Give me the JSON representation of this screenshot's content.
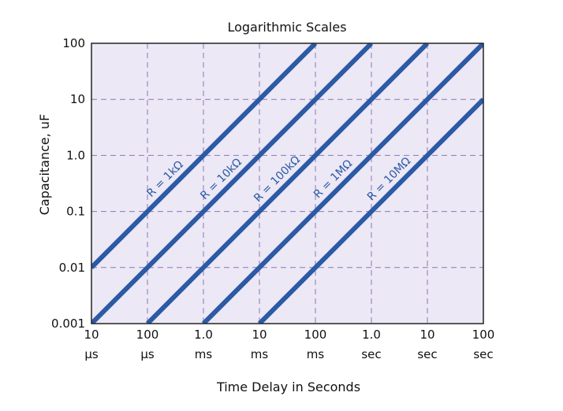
{
  "chart_data": {
    "type": "line",
    "title": "Logarithmic Scales",
    "xlabel": "Time Delay in Seconds",
    "ylabel": "Capacitance, uF",
    "x_scale": "log",
    "y_scale": "log",
    "xlim": [
      1e-05,
      100
    ],
    "ylim": [
      0.001,
      100
    ],
    "grid": true,
    "x_ticks": [
      {
        "value": 1e-05,
        "line1": "10",
        "line2": "µs"
      },
      {
        "value": 0.0001,
        "line1": "100",
        "line2": "µs"
      },
      {
        "value": 0.001,
        "line1": "1.0",
        "line2": "ms"
      },
      {
        "value": 0.01,
        "line1": "10",
        "line2": "ms"
      },
      {
        "value": 0.1,
        "line1": "100",
        "line2": "ms"
      },
      {
        "value": 1,
        "line1": "1.0",
        "line2": "sec"
      },
      {
        "value": 10,
        "line1": "10",
        "line2": "sec"
      },
      {
        "value": 100,
        "line1": "100",
        "line2": "sec"
      }
    ],
    "y_ticks": [
      {
        "value": 100,
        "label": "100"
      },
      {
        "value": 10,
        "label": "10"
      },
      {
        "value": 1,
        "label": "1.0"
      },
      {
        "value": 0.1,
        "label": "0.1"
      },
      {
        "value": 0.01,
        "label": "0.01"
      },
      {
        "value": 0.001,
        "label": "0.001"
      }
    ],
    "series": [
      {
        "name": "R = 1kΩ",
        "resistance_ohm": 1000,
        "points": [
          [
            1e-05,
            0.01
          ],
          [
            0.1,
            100
          ]
        ]
      },
      {
        "name": "R = 10kΩ",
        "resistance_ohm": 10000,
        "points": [
          [
            1e-05,
            0.001
          ],
          [
            1,
            100
          ]
        ]
      },
      {
        "name": "R = 100kΩ",
        "resistance_ohm": 100000,
        "points": [
          [
            0.0001,
            0.001
          ],
          [
            10,
            100
          ]
        ]
      },
      {
        "name": "R = 1MΩ",
        "resistance_ohm": 1000000,
        "points": [
          [
            0.001,
            0.001
          ],
          [
            100,
            100
          ]
        ]
      },
      {
        "name": "R = 10MΩ",
        "resistance_ohm": 10000000,
        "points": [
          [
            0.01,
            0.001
          ],
          [
            100,
            10
          ]
        ]
      }
    ],
    "colors": {
      "plot_background": "#ece8f5",
      "grid": "#8a78b8",
      "line": "#2c5aa5",
      "frame": "#222222",
      "text": "#111111"
    }
  }
}
